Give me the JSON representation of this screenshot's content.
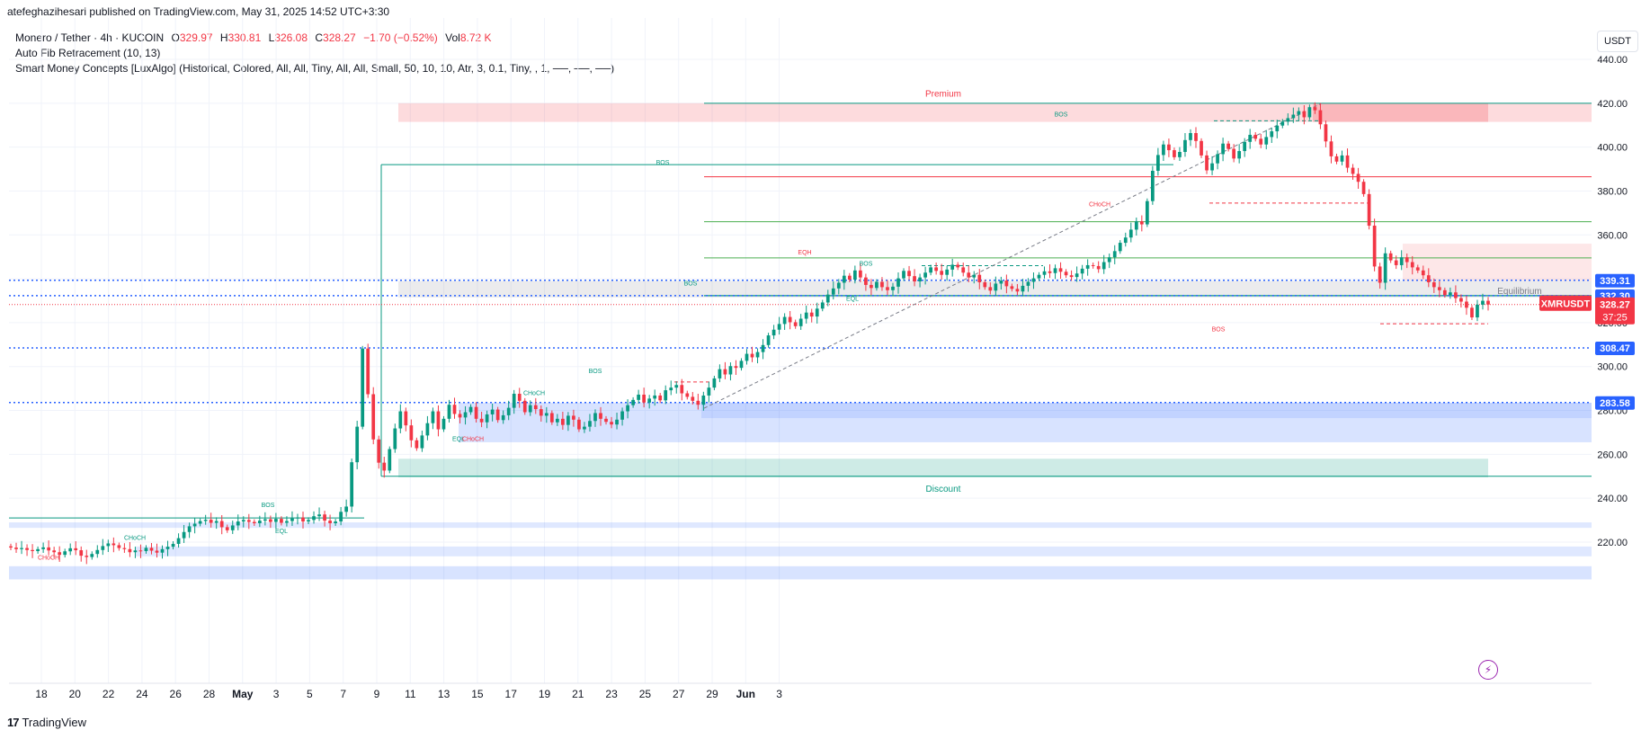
{
  "header": {
    "publisher": "atefeghazihesari published on TradingView.com, May 31, 2025 14:52 UTC+3:30"
  },
  "legend": {
    "symbol": "Monero / Tether · 4h · KUCOIN",
    "open_label": "O",
    "open": "329.97",
    "high_label": "H",
    "high": "330.81",
    "low_label": "L",
    "low": "326.08",
    "close_label": "C",
    "close": "328.27",
    "change": "−1.70 (−0.52%)",
    "vol_label": "Vol",
    "vol": "8.72 K",
    "indicator1": "Auto Fib Retracement (10, 13)",
    "indicator2": "Smart Money Concepts [LuxAlgo] (Historical, Colored, All, All, Tiny, All, All, Small, 50, 10, 10, Atr, 3, 0.1, Tiny, , 1, ──, ──, ──)"
  },
  "currency": "USDT",
  "footer": {
    "brand": "TradingView"
  },
  "icons": {
    "logo": "tradingview-logo-icon",
    "flash": "lightning-icon"
  },
  "colors": {
    "up": "#089981",
    "down": "#f23645",
    "blue": "#2962ff",
    "grid": "#f0f3fa"
  },
  "chart_data": {
    "type": "candlestick",
    "ylim": [
      200,
      445
    ],
    "y_ticks": [
      "220.00",
      "240.00",
      "260.00",
      "280.00",
      "300.00",
      "320.00",
      "340.00",
      "360.00",
      "380.00",
      "400.00",
      "420.00",
      "440.00"
    ],
    "x_ticks": [
      "18",
      "20",
      "22",
      "24",
      "26",
      "28",
      "May",
      "3",
      "5",
      "7",
      "9",
      "11",
      "13",
      "15",
      "17",
      "19",
      "21",
      "23",
      "25",
      "27",
      "29",
      "Jun",
      "3"
    ],
    "price_tags": [
      {
        "value": "339.31",
        "price": 339.31,
        "kind": "blue"
      },
      {
        "value": "332.30",
        "price": 332.3,
        "kind": "blue"
      },
      {
        "value": "308.47",
        "price": 308.47,
        "kind": "blue"
      },
      {
        "value": "283.58",
        "price": 283.58,
        "kind": "blue"
      }
    ],
    "last_price": {
      "symbol": "XMRUSDT",
      "value": "328.27",
      "countdown": "37:25",
      "price": 328.27
    },
    "zones": {
      "premium_label": "Premium",
      "discount_label": "Discount",
      "equilibrium_label": "Equilibrium"
    },
    "smc_labels": [
      {
        "text": "BOS",
        "color": "up",
        "price": 392,
        "x": 737
      },
      {
        "text": "BOS",
        "color": "up",
        "price": 414,
        "x": 1180
      },
      {
        "text": "CHoCH",
        "color": "down",
        "price": 373,
        "x": 1223
      },
      {
        "text": "BOS",
        "color": "down",
        "price": 316,
        "x": 1355
      },
      {
        "text": "EQH",
        "color": "down",
        "price": 351,
        "x": 895
      },
      {
        "text": "BOS",
        "color": "up",
        "price": 346,
        "x": 963
      },
      {
        "text": "EQL",
        "color": "up",
        "price": 330,
        "x": 948
      },
      {
        "text": "BOS",
        "color": "up",
        "price": 337,
        "x": 768
      },
      {
        "text": "BOS",
        "color": "up",
        "price": 297,
        "x": 662
      },
      {
        "text": "CHoCH",
        "color": "up",
        "price": 287,
        "x": 594
      },
      {
        "text": "EQL",
        "color": "up",
        "price": 266,
        "x": 510
      },
      {
        "text": "CHoCH",
        "color": "down",
        "price": 266,
        "x": 526
      },
      {
        "text": "BOS",
        "color": "up",
        "price": 236,
        "x": 298
      },
      {
        "text": "EQL",
        "color": "up",
        "price": 224,
        "x": 313
      },
      {
        "text": "CHoCH",
        "color": "up",
        "price": 221,
        "x": 150
      },
      {
        "text": "CHoCH",
        "color": "down",
        "price": 212,
        "x": 54
      }
    ],
    "closes": [
      217.5,
      216.8,
      217.3,
      216.4,
      215.9,
      216.8,
      217.6,
      216.2,
      215.4,
      214.2,
      215.8,
      217.2,
      216.3,
      213.8,
      213.2,
      214.6,
      216.4,
      218.2,
      219.4,
      218.6,
      217.3,
      216.8,
      215.4,
      216.2,
      215.9,
      217.4,
      216.1,
      215.2,
      216.8,
      217.9,
      219.2,
      221.8,
      224.6,
      227.2,
      228.4,
      229.6,
      230.2,
      228.8,
      229.6,
      226.8,
      225.4,
      227.6,
      229.4,
      230.1,
      229.2,
      228.6,
      229.8,
      230.4,
      229.2,
      230.6,
      228.8,
      229.6,
      230.8,
      231.2,
      229.4,
      230.1,
      231.8,
      232.6,
      229.8,
      228.6,
      229.4,
      233.8,
      236.2,
      256.4,
      272.6,
      308.2,
      287.4,
      266.8,
      256.2,
      252.6,
      262.4,
      271.8,
      279.6,
      273.2,
      266.4,
      262.8,
      268.6,
      274.2,
      279.6,
      271.4,
      276.2,
      282.6,
      278.4,
      276.8,
      279.2,
      281.6,
      276.2,
      274.6,
      278.2,
      280.4,
      275.6,
      277.8,
      281.2,
      287.6,
      284.4,
      279.2,
      282.4,
      280.6,
      277.6,
      278.8,
      274.6,
      276.2,
      273.4,
      277.6,
      275.8,
      271.4,
      272.6,
      275.2,
      278.8,
      276.2,
      274.8,
      273.6,
      275.8,
      279.6,
      282.4,
      284.8,
      287.2,
      283.6,
      285.4,
      286.8,
      284.6,
      289.2,
      290.4,
      291.6,
      287.8,
      286.2,
      284.4,
      282.6,
      286.8,
      290.4,
      294.6,
      298.8,
      296.4,
      300.2,
      299.4,
      302.6,
      305.8,
      304.2,
      306.6,
      309.8,
      314.2,
      316.8,
      319.4,
      322.6,
      320.2,
      318.4,
      321.8,
      324.6,
      322.8,
      326.4,
      329.2,
      332.8,
      335.6,
      338.2,
      341.4,
      339.6,
      343.8,
      340.6,
      337.2,
      335.8,
      338.6,
      336.2,
      334.8,
      336.4,
      340.2,
      343.6,
      341.2,
      338.8,
      340.6,
      342.8,
      345.2,
      343.6,
      341.8,
      344.2,
      346.4,
      345.2,
      342.8,
      340.6,
      341.8,
      338.4,
      336.2,
      334.6,
      337.8,
      339.2,
      336.6,
      335.4,
      334.2,
      336.8,
      338.6,
      340.2,
      341.8,
      343.4,
      342.6,
      344.8,
      343.2,
      341.6,
      340.8,
      342.4,
      344.6,
      346.2,
      345.8,
      344.4,
      347.6,
      349.8,
      352.6,
      356.4,
      358.8,
      362.4,
      366.2,
      364.8,
      375.4,
      389.2,
      396.4,
      401.2,
      398.6,
      395.4,
      397.8,
      403.2,
      406.4,
      402.8,
      396.2,
      389.4,
      392.6,
      396.8,
      401.6,
      399.2,
      394.8,
      398.2,
      402.4,
      405.6,
      403.8,
      401.2,
      404.6,
      407.2,
      409.8,
      411.6,
      413.2,
      414.8,
      416.4,
      413.6,
      418.2,
      416.8,
      410.4,
      402.6,
      395.8,
      393.4,
      396.2,
      390.6,
      387.8,
      384.2,
      378.6,
      364.2,
      345.6,
      338.2,
      351.6,
      348.4,
      346.2,
      349.8,
      347.6,
      345.2,
      343.8,
      341.6,
      338.4,
      336.2,
      334.8,
      332.6,
      333.8,
      331.2,
      329.6,
      326.8,
      322.4,
      328.2,
      329.97,
      328.27
    ]
  }
}
